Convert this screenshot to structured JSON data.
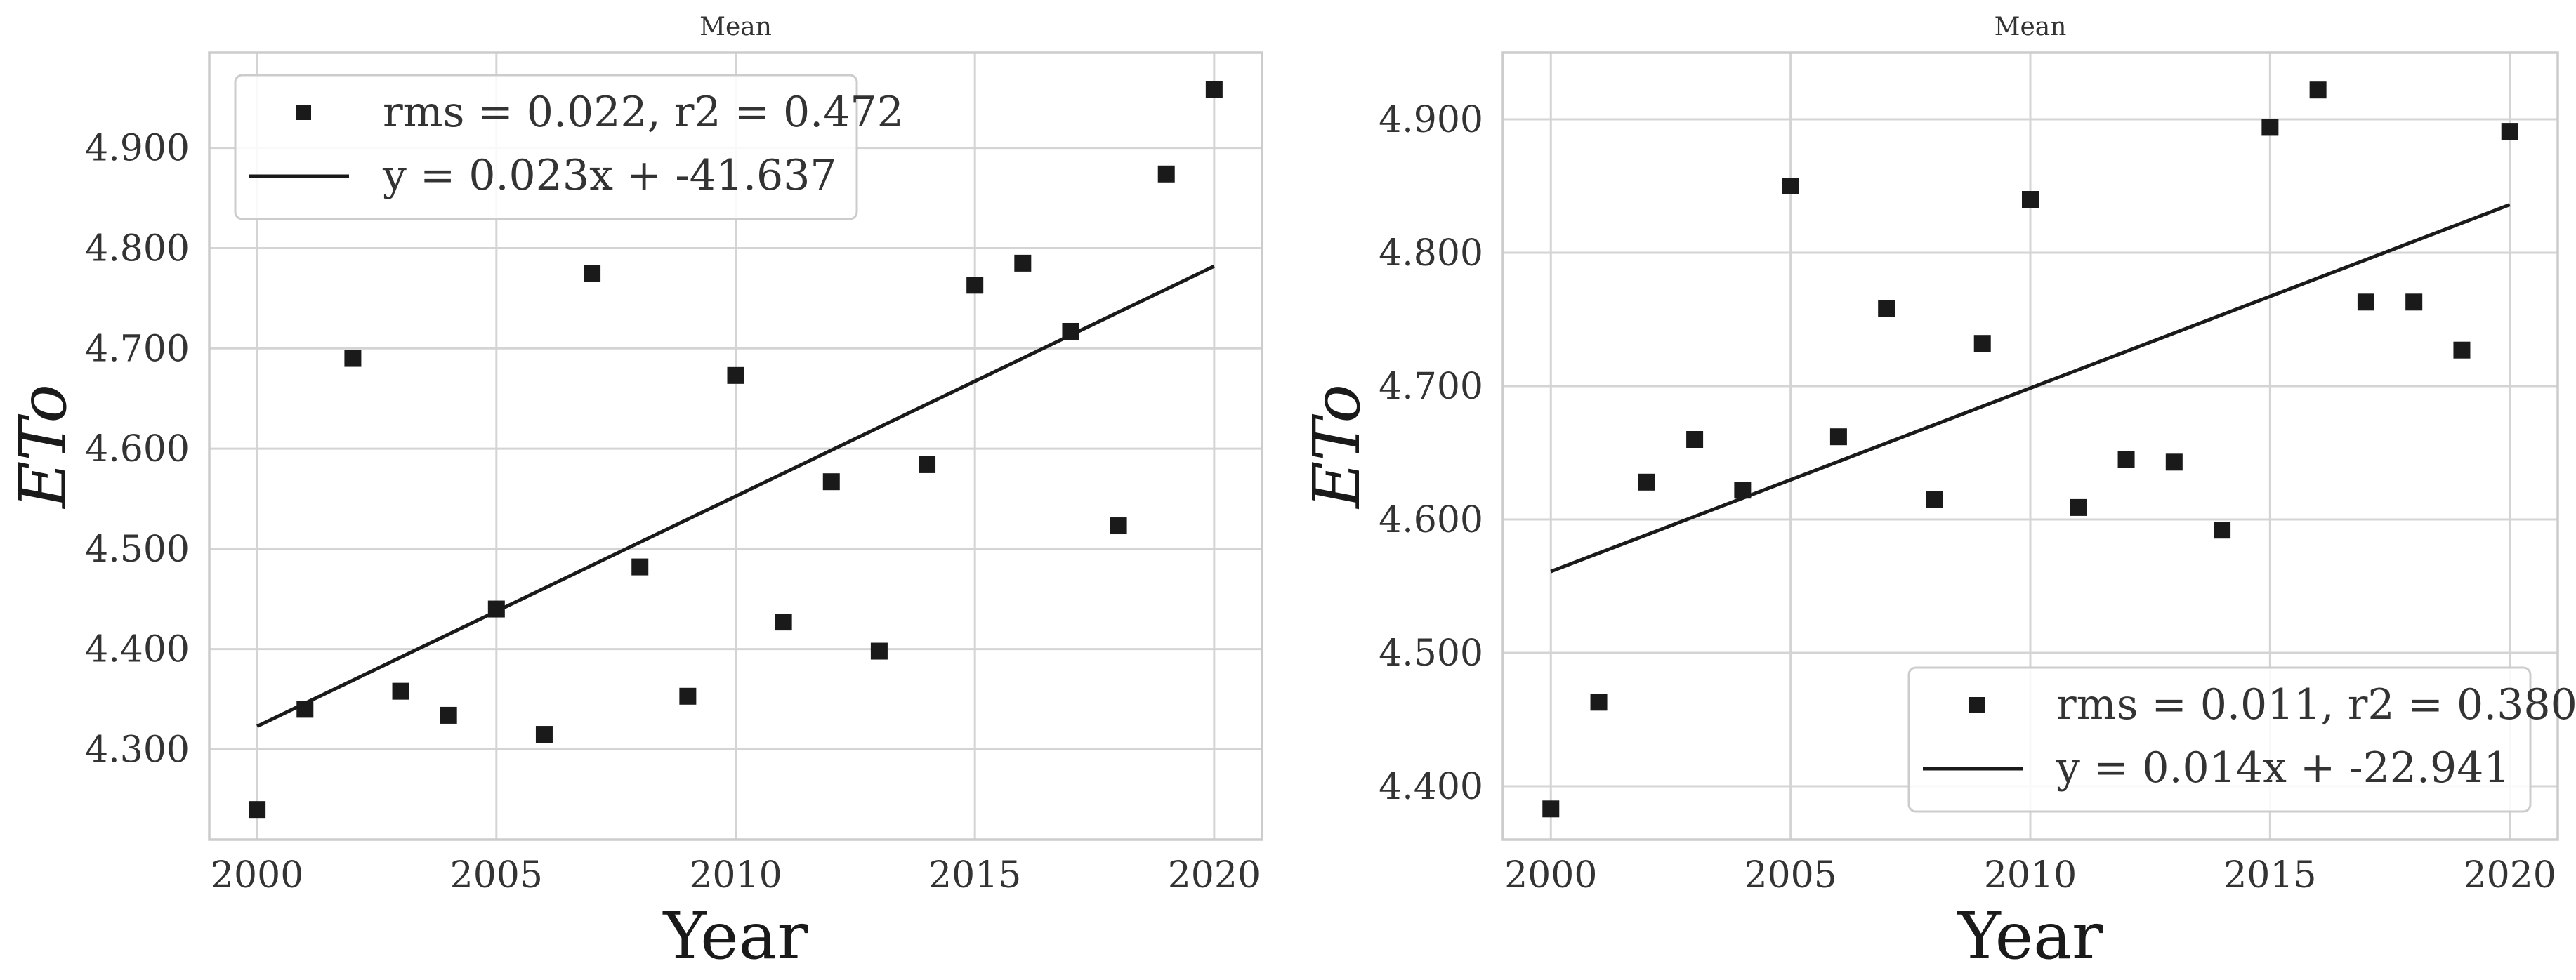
{
  "chart_data": [
    {
      "type": "scatter",
      "title": "Mean",
      "xlabel": "Year",
      "ylabel": "ETo",
      "xlim": [
        1999,
        2021
      ],
      "ylim": [
        4.21,
        4.995
      ],
      "xticks": [
        2000,
        2005,
        2010,
        2015,
        2020
      ],
      "xtick_labels": [
        "2000",
        "2005",
        "2010",
        "2015",
        "2020"
      ],
      "yticks": [
        4.3,
        4.4,
        4.5,
        4.6,
        4.7,
        4.8,
        4.9
      ],
      "ytick_labels": [
        "4.300",
        "4.400",
        "4.500",
        "4.600",
        "4.700",
        "4.800",
        "4.900"
      ],
      "grid": true,
      "legend_position": "top-left",
      "series": [
        {
          "name": "rms = 0.022, r2 = 0.472",
          "kind": "scatter",
          "marker": "square",
          "color": "#1a1a1a",
          "x": [
            2000,
            2001,
            2002,
            2003,
            2004,
            2005,
            2006,
            2007,
            2008,
            2009,
            2010,
            2011,
            2012,
            2013,
            2014,
            2015,
            2016,
            2017,
            2018,
            2019,
            2020
          ],
          "y": [
            4.24,
            4.34,
            4.69,
            4.358,
            4.334,
            4.44,
            4.315,
            4.775,
            4.482,
            4.353,
            4.673,
            4.427,
            4.567,
            4.398,
            4.584,
            4.763,
            4.785,
            4.717,
            4.523,
            4.874,
            4.958
          ]
        },
        {
          "name": "y = 0.023x + -41.637",
          "kind": "line",
          "color": "#1a1a1a",
          "x": [
            2000,
            2020
          ],
          "y": [
            4.323,
            4.782
          ]
        }
      ]
    },
    {
      "type": "scatter",
      "title": "Mean",
      "xlabel": "Year",
      "ylabel": "ETo",
      "xlim": [
        1999,
        2021
      ],
      "ylim": [
        4.36,
        4.95
      ],
      "xticks": [
        2000,
        2005,
        2010,
        2015,
        2020
      ],
      "xtick_labels": [
        "2000",
        "2005",
        "2010",
        "2015",
        "2020"
      ],
      "yticks": [
        4.4,
        4.5,
        4.6,
        4.7,
        4.8,
        4.9
      ],
      "ytick_labels": [
        "4.400",
        "4.500",
        "4.600",
        "4.700",
        "4.800",
        "4.900"
      ],
      "grid": true,
      "legend_position": "bottom-right",
      "series": [
        {
          "name": "rms = 0.011, r2 = 0.380",
          "kind": "scatter",
          "marker": "square",
          "color": "#1a1a1a",
          "x": [
            2000,
            2001,
            2002,
            2003,
            2004,
            2005,
            2006,
            2007,
            2008,
            2009,
            2010,
            2011,
            2012,
            2013,
            2014,
            2015,
            2016,
            2017,
            2018,
            2019,
            2020
          ],
          "y": [
            4.383,
            4.463,
            4.628,
            4.66,
            4.622,
            4.85,
            4.662,
            4.758,
            4.615,
            4.732,
            4.84,
            4.609,
            4.645,
            4.643,
            4.592,
            4.894,
            4.922,
            4.763,
            4.763,
            4.727,
            4.891
          ]
        },
        {
          "name": "y = 0.014x + -22.941",
          "kind": "line",
          "color": "#1a1a1a",
          "x": [
            2000,
            2020
          ],
          "y": [
            4.561,
            4.836
          ]
        }
      ]
    }
  ]
}
